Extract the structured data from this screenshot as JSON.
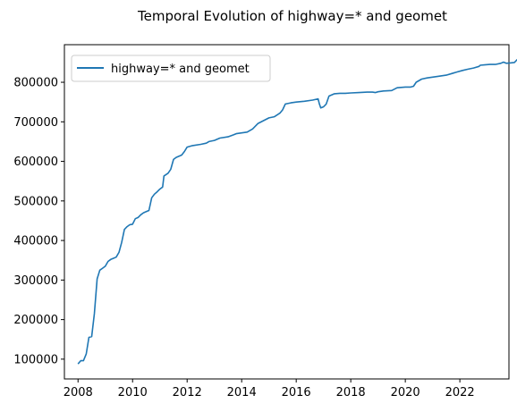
{
  "chart_data": {
    "type": "line",
    "title": "Temporal Evolution of highway=* and geomet",
    "xlabel": "",
    "ylabel": "",
    "xlim": [
      2007.5,
      2023.8
    ],
    "ylim": [
      50000,
      895000
    ],
    "x_ticks": [
      2008,
      2010,
      2012,
      2014,
      2016,
      2018,
      2020,
      2022
    ],
    "x_tick_labels": [
      "2008",
      "2010",
      "2012",
      "2014",
      "2016",
      "2018",
      "2020",
      "2022"
    ],
    "y_ticks": [
      100000,
      200000,
      300000,
      400000,
      500000,
      600000,
      700000,
      800000
    ],
    "y_tick_labels": [
      "100000",
      "200000",
      "300000",
      "400000",
      "500000",
      "600000",
      "700000",
      "800000"
    ],
    "grid": false,
    "legend": {
      "position": "upper left",
      "entries": [
        "highway=* and geomet"
      ]
    },
    "series": [
      {
        "name": "highway=* and geomet",
        "color": "#1f77b4",
        "points": [
          [
            2008.0,
            88000
          ],
          [
            2008.1,
            96000
          ],
          [
            2008.2,
            96000
          ],
          [
            2008.3,
            113000
          ],
          [
            2008.4,
            155000
          ],
          [
            2008.5,
            157000
          ],
          [
            2008.6,
            215000
          ],
          [
            2008.7,
            303000
          ],
          [
            2008.8,
            325000
          ],
          [
            2008.9,
            330000
          ],
          [
            2009.0,
            335000
          ],
          [
            2009.1,
            347000
          ],
          [
            2009.2,
            352000
          ],
          [
            2009.3,
            355000
          ],
          [
            2009.4,
            358000
          ],
          [
            2009.5,
            370000
          ],
          [
            2009.6,
            395000
          ],
          [
            2009.7,
            428000
          ],
          [
            2009.8,
            435000
          ],
          [
            2009.9,
            440000
          ],
          [
            2010.0,
            441000
          ],
          [
            2010.1,
            455000
          ],
          [
            2010.2,
            458000
          ],
          [
            2010.3,
            465000
          ],
          [
            2010.4,
            470000
          ],
          [
            2010.5,
            473000
          ],
          [
            2010.6,
            476000
          ],
          [
            2010.7,
            508000
          ],
          [
            2010.8,
            517000
          ],
          [
            2010.9,
            523000
          ],
          [
            2011.0,
            530000
          ],
          [
            2011.1,
            535000
          ],
          [
            2011.15,
            563000
          ],
          [
            2011.3,
            570000
          ],
          [
            2011.4,
            580000
          ],
          [
            2011.5,
            605000
          ],
          [
            2011.6,
            610000
          ],
          [
            2011.8,
            616000
          ],
          [
            2011.9,
            625000
          ],
          [
            2012.0,
            636000
          ],
          [
            2012.2,
            640000
          ],
          [
            2012.5,
            643000
          ],
          [
            2012.7,
            646000
          ],
          [
            2012.8,
            650000
          ],
          [
            2013.0,
            653000
          ],
          [
            2013.2,
            659000
          ],
          [
            2013.5,
            662000
          ],
          [
            2013.7,
            667000
          ],
          [
            2013.8,
            670000
          ],
          [
            2014.0,
            672000
          ],
          [
            2014.2,
            674000
          ],
          [
            2014.4,
            682000
          ],
          [
            2014.6,
            696000
          ],
          [
            2014.8,
            703000
          ],
          [
            2015.0,
            710000
          ],
          [
            2015.2,
            713000
          ],
          [
            2015.4,
            722000
          ],
          [
            2015.5,
            730000
          ],
          [
            2015.6,
            745000
          ],
          [
            2015.8,
            748000
          ],
          [
            2016.0,
            750000
          ],
          [
            2016.3,
            752000
          ],
          [
            2016.6,
            755000
          ],
          [
            2016.8,
            758000
          ],
          [
            2016.85,
            745000
          ],
          [
            2016.9,
            735000
          ],
          [
            2017.0,
            738000
          ],
          [
            2017.1,
            745000
          ],
          [
            2017.2,
            765000
          ],
          [
            2017.4,
            771000
          ],
          [
            2017.6,
            772000
          ],
          [
            2017.8,
            772000
          ],
          [
            2018.0,
            773000
          ],
          [
            2018.3,
            774000
          ],
          [
            2018.6,
            775000
          ],
          [
            2018.8,
            775000
          ],
          [
            2018.9,
            774000
          ],
          [
            2019.0,
            776000
          ],
          [
            2019.2,
            778000
          ],
          [
            2019.5,
            779000
          ],
          [
            2019.7,
            786000
          ],
          [
            2020.0,
            788000
          ],
          [
            2020.2,
            788000
          ],
          [
            2020.3,
            790000
          ],
          [
            2020.4,
            800000
          ],
          [
            2020.6,
            808000
          ],
          [
            2020.8,
            811000
          ],
          [
            2021.0,
            813000
          ],
          [
            2021.2,
            815000
          ],
          [
            2021.5,
            818000
          ],
          [
            2021.7,
            822000
          ],
          [
            2021.9,
            826000
          ],
          [
            2022.1,
            830000
          ],
          [
            2022.3,
            833000
          ],
          [
            2022.5,
            836000
          ],
          [
            2022.7,
            840000
          ],
          [
            2022.75,
            843000
          ],
          [
            2022.9,
            844000
          ],
          [
            2023.1,
            845000
          ],
          [
            2023.3,
            845000
          ],
          [
            2023.5,
            848000
          ],
          [
            2023.6,
            851000
          ],
          [
            2023.7,
            848000
          ],
          [
            2023.85,
            849000
          ],
          [
            2024.0,
            850000
          ],
          [
            2024.1,
            857000
          ],
          [
            2024.3,
            858000
          ],
          [
            2024.5,
            860000
          ]
        ]
      }
    ]
  }
}
